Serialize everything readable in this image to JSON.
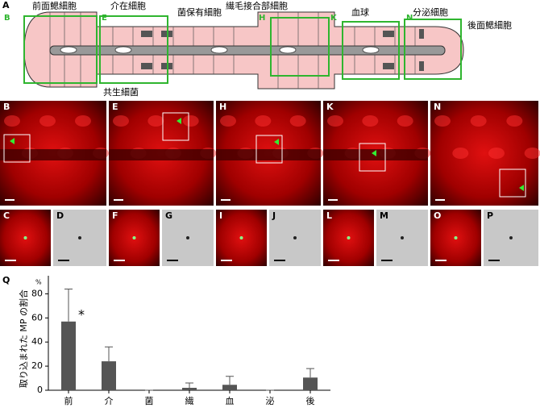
{
  "panel_a": {
    "label": "A",
    "cells": {
      "anterior_gill": "前面鰓細胞",
      "intercalary": "介在細胞",
      "bacteriocyte": "菌保有細胞",
      "ciliary_junction": "繊毛接合部細胞",
      "hemocyte": "血球",
      "secretory": "分泌細胞",
      "posterior_gill": "後面鰓細胞",
      "symbiont": "共生細菌"
    },
    "regions": [
      "B",
      "E",
      "H",
      "K",
      "N"
    ]
  },
  "micrographs": {
    "large": [
      "B",
      "E",
      "H",
      "K",
      "N"
    ],
    "small": [
      "C",
      "D",
      "F",
      "G",
      "I",
      "J",
      "L",
      "M",
      "O",
      "P"
    ]
  },
  "chart_data": {
    "type": "bar",
    "panel_label": "Q",
    "unit_label": "%",
    "ylabel": "取り込まれた MP の割合",
    "annotation": "*",
    "categories": [
      "前",
      "介",
      "菌",
      "繊",
      "血",
      "泌",
      "後"
    ],
    "values": [
      57,
      24,
      0,
      2,
      4.5,
      0,
      10.5
    ],
    "errors": [
      27,
      12,
      0,
      4,
      7,
      0,
      7.5
    ],
    "color": "#555555",
    "ylim": [
      0,
      95
    ],
    "yticks": [
      0,
      20,
      40,
      60,
      80
    ]
  }
}
